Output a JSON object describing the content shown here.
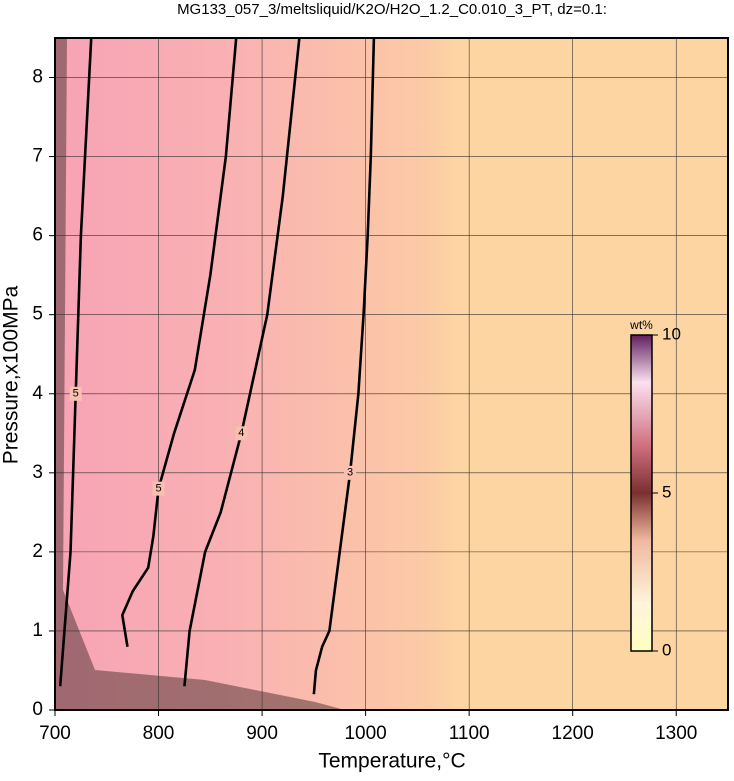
{
  "chart_data": {
    "type": "contour",
    "title": "MG133_057_3/meltsliquid/K2O/H2O_1.2_C0.010_3_PT, dz=0.1:",
    "x_label": "Temperature,°C",
    "y_label": "Pressure,x100MPa",
    "xlim": [
      700,
      1350
    ],
    "ylim": [
      0,
      8.5
    ],
    "xticks": [
      700,
      800,
      900,
      1000,
      1100,
      1200,
      1300
    ],
    "yticks": [
      0,
      1,
      2,
      3,
      4,
      5,
      6,
      7,
      8
    ],
    "grid": true,
    "contours": [
      {
        "level": 3,
        "x": [
          950,
          952,
          958,
          965,
          975,
          985,
          993,
          998,
          1002,
          1005,
          1008
        ],
        "y": [
          0.2,
          0.5,
          0.8,
          1,
          2,
          3,
          4,
          5,
          6,
          7,
          8.5
        ]
      },
      {
        "level": 4,
        "x": [
          825,
          830,
          845,
          860,
          880,
          905,
          920,
          936
        ],
        "y": [
          0.3,
          1,
          2,
          2.5,
          3.5,
          5,
          6.5,
          8.5
        ]
      },
      {
        "level": 5,
        "x": [
          770,
          765,
          775,
          790,
          795,
          800,
          815,
          835,
          850,
          865,
          875
        ],
        "y": [
          0.8,
          1.2,
          1.5,
          1.8,
          2.2,
          2.8,
          3.5,
          4.3,
          5.5,
          7,
          8.5
        ]
      },
      {
        "level": 5,
        "x": [
          705,
          715,
          720,
          725,
          735
        ],
        "y": [
          0.3,
          2,
          4,
          6,
          8.5
        ]
      }
    ],
    "colorbar": {
      "label": "wt%",
      "lim": [
        0,
        10
      ],
      "ticks": [
        0,
        5,
        10
      ]
    }
  }
}
